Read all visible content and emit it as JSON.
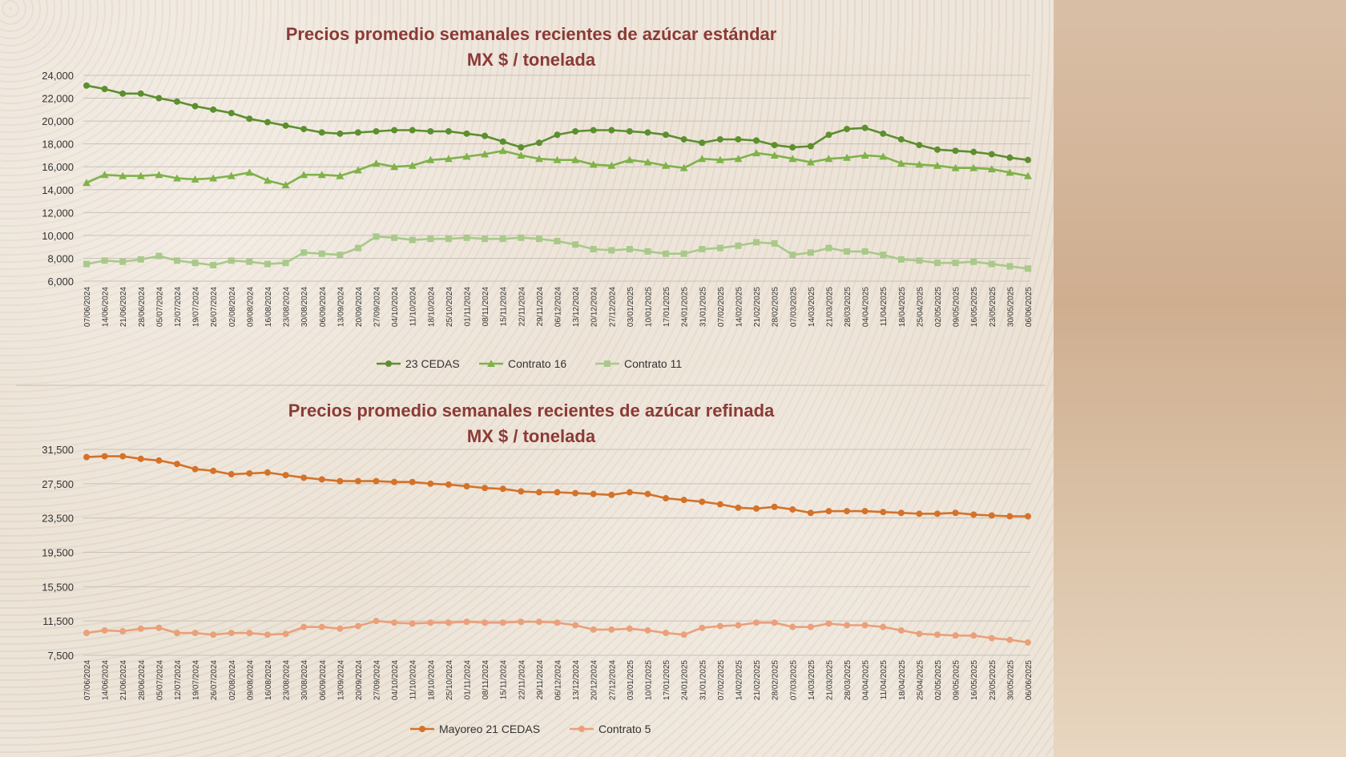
{
  "colors": {
    "title": "#8b3a36",
    "series_23cedas": "#5c8f2f",
    "series_contrato16": "#7fb24a",
    "series_contrato11": "#a9c98a",
    "series_mayoreo": "#d4722a",
    "series_contrato5": "#eaa07a"
  },
  "chart_data": [
    {
      "type": "line",
      "title": "Precios promedio semanales recientes de azúcar estándar",
      "subtitle": "MX $ / tonelada",
      "ylim": [
        6000,
        24000
      ],
      "yticks": [
        "24,000",
        "22,000",
        "20,000",
        "18,000",
        "16,000",
        "14,000",
        "12,000",
        "10,000",
        "8,000",
        "6,000"
      ],
      "ytick_values": [
        24000,
        22000,
        20000,
        18000,
        16000,
        14000,
        12000,
        10000,
        8000,
        6000
      ],
      "grid": true,
      "legend_position": "bottom",
      "categories": [
        "07/06/2024",
        "14/06/2024",
        "21/06/2024",
        "28/06/2024",
        "05/07/2024",
        "12/07/2024",
        "19/07/2024",
        "26/07/2024",
        "02/08/2024",
        "09/08/2024",
        "16/08/2024",
        "23/08/2024",
        "30/08/2024",
        "06/09/2024",
        "13/09/2024",
        "20/09/2024",
        "27/09/2024",
        "04/10/2024",
        "11/10/2024",
        "18/10/2024",
        "25/10/2024",
        "01/11/2024",
        "08/11/2024",
        "15/11/2024",
        "22/11/2024",
        "29/11/2024",
        "06/12/2024",
        "13/12/2024",
        "20/12/2024",
        "27/12/2024",
        "03/01/2025",
        "10/01/2025",
        "17/01/2025",
        "24/01/2025",
        "31/01/2025",
        "07/02/2025",
        "14/02/2025",
        "21/02/2025",
        "28/02/2025",
        "07/03/2025",
        "14/03/2025",
        "21/03/2025",
        "28/03/2025",
        "04/04/2025",
        "11/04/2025",
        "18/04/2025",
        "25/04/2025",
        "02/05/2025",
        "09/05/2025",
        "16/05/2025",
        "23/05/2025",
        "30/05/2025",
        "06/06/2025"
      ],
      "series": [
        {
          "name": "23 CEDAS",
          "marker": "circle",
          "values": [
            23100,
            22800,
            22400,
            22400,
            22000,
            21700,
            21300,
            21000,
            20700,
            20200,
            19900,
            19600,
            19300,
            19000,
            18900,
            19000,
            19100,
            19200,
            19200,
            19100,
            19100,
            18900,
            18700,
            18200,
            17700,
            18100,
            18800,
            19100,
            19200,
            19200,
            19100,
            19000,
            18800,
            18400,
            18100,
            18400,
            18400,
            18300,
            17900,
            17700,
            17800,
            18800,
            19300,
            19400,
            18900,
            18400,
            17900,
            17500,
            17400,
            17300,
            17100,
            16800,
            16600
          ]
        },
        {
          "name": "Contrato 16",
          "marker": "triangle",
          "values": [
            14600,
            15300,
            15200,
            15200,
            15300,
            15000,
            14900,
            15000,
            15200,
            15500,
            14800,
            14400,
            15300,
            15300,
            15200,
            15700,
            16300,
            16000,
            16100,
            16600,
            16700,
            16900,
            17100,
            17400,
            17000,
            16700,
            16600,
            16600,
            16200,
            16100,
            16600,
            16400,
            16100,
            15900,
            16700,
            16600,
            16700,
            17200,
            17000,
            16700,
            16400,
            16700,
            16800,
            17000,
            16900,
            16300,
            16200,
            16100,
            15900,
            15900,
            15800,
            15500,
            15200
          ]
        },
        {
          "name": "Contrato 11",
          "marker": "square",
          "values": [
            7500,
            7800,
            7700,
            7900,
            8200,
            7800,
            7600,
            7400,
            7800,
            7700,
            7500,
            7600,
            8500,
            8400,
            8300,
            8900,
            9900,
            9800,
            9600,
            9700,
            9700,
            9800,
            9700,
            9700,
            9800,
            9700,
            9500,
            9200,
            8800,
            8700,
            8800,
            8600,
            8400,
            8400,
            8800,
            8900,
            9100,
            9400,
            9300,
            8300,
            8500,
            8900,
            8600,
            8600,
            8300,
            7900,
            7800,
            7600,
            7600,
            7700,
            7500,
            7300,
            7100
          ]
        }
      ]
    },
    {
      "type": "line",
      "title": "Precios promedio semanales recientes de azúcar refinada",
      "subtitle": "MX $ / tonelada",
      "ylim": [
        7500,
        31500
      ],
      "yticks": [
        "31,500",
        "27,500",
        "23,500",
        "19,500",
        "15,500",
        "11,500",
        "7,500"
      ],
      "ytick_values": [
        31500,
        27500,
        23500,
        19500,
        15500,
        11500,
        7500
      ],
      "grid": true,
      "legend_position": "bottom",
      "categories": [
        "07/06/2024",
        "14/06/2024",
        "21/06/2024",
        "28/06/2024",
        "05/07/2024",
        "12/07/2024",
        "19/07/2024",
        "26/07/2024",
        "02/08/2024",
        "09/08/2024",
        "16/08/2024",
        "23/08/2024",
        "30/08/2024",
        "06/09/2024",
        "13/09/2024",
        "20/09/2024",
        "27/09/2024",
        "04/10/2024",
        "11/10/2024",
        "18/10/2024",
        "25/10/2024",
        "01/11/2024",
        "08/11/2024",
        "15/11/2024",
        "22/11/2024",
        "29/11/2024",
        "06/12/2024",
        "13/12/2024",
        "20/12/2024",
        "27/12/2024",
        "03/01/2025",
        "10/01/2025",
        "17/01/2025",
        "24/01/2025",
        "31/01/2025",
        "07/02/2025",
        "14/02/2025",
        "21/02/2025",
        "28/02/2025",
        "07/03/2025",
        "14/03/2025",
        "21/03/2025",
        "28/03/2025",
        "04/04/2025",
        "11/04/2025",
        "18/04/2025",
        "25/04/2025",
        "02/05/2025",
        "09/05/2025",
        "16/05/2025",
        "23/05/2025",
        "30/05/2025",
        "06/06/2025"
      ],
      "series": [
        {
          "name": "Mayoreo 21 CEDAS",
          "marker": "circle",
          "values": [
            30600,
            30700,
            30700,
            30400,
            30200,
            29800,
            29200,
            29000,
            28600,
            28700,
            28800,
            28500,
            28200,
            28000,
            27800,
            27800,
            27800,
            27700,
            27700,
            27500,
            27400,
            27200,
            27000,
            26900,
            26600,
            26500,
            26500,
            26400,
            26300,
            26200,
            26500,
            26300,
            25800,
            25600,
            25400,
            25100,
            24700,
            24600,
            24800,
            24500,
            24100,
            24300,
            24300,
            24300,
            24200,
            24100,
            24000,
            24000,
            24100,
            23900,
            23800,
            23700,
            23700
          ]
        },
        {
          "name": "Contrato 5",
          "marker": "circle",
          "values": [
            10100,
            10400,
            10300,
            10600,
            10700,
            10100,
            10100,
            9900,
            10100,
            10100,
            9900,
            10000,
            10800,
            10800,
            10600,
            10900,
            11500,
            11300,
            11200,
            11300,
            11300,
            11400,
            11300,
            11300,
            11400,
            11400,
            11300,
            11000,
            10500,
            10500,
            10600,
            10400,
            10100,
            9900,
            10700,
            10900,
            11000,
            11300,
            11300,
            10800,
            10800,
            11200,
            11000,
            11000,
            10800,
            10400,
            10000,
            9900,
            9800,
            9800,
            9500,
            9300,
            9000
          ]
        }
      ]
    }
  ]
}
